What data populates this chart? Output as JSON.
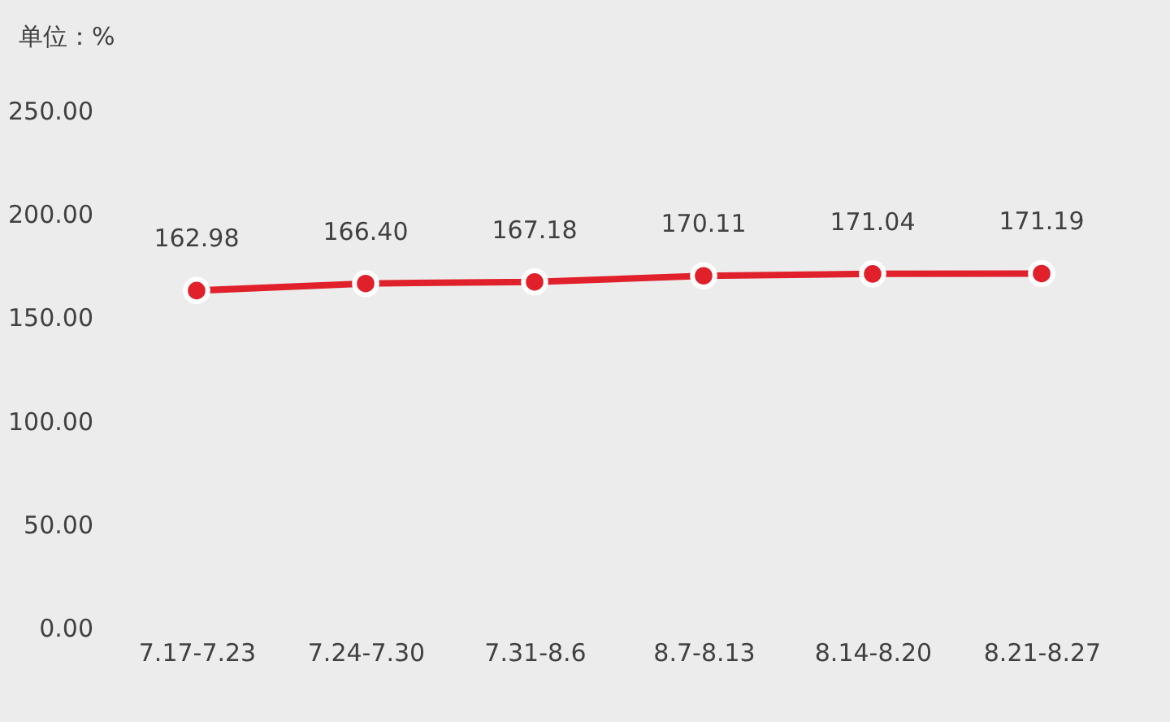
{
  "chart_data": {
    "type": "line",
    "ylabel": "单位：%",
    "categories": [
      "7.17-7.23",
      "7.24-7.30",
      "7.31-8.6",
      "8.7-8.13",
      "8.14-8.20",
      "8.21-8.27"
    ],
    "series": [
      {
        "color": "#e0202a",
        "values": [
          162.98,
          166.4,
          167.18,
          170.11,
          171.04,
          171.19
        ],
        "value_labels": [
          "162.98",
          "166.40",
          "167.18",
          "170.11",
          "171.04",
          "171.19"
        ]
      }
    ],
    "ylim": [
      0,
      250
    ],
    "yticks": [
      {
        "value": 0,
        "label": "0.00"
      },
      {
        "value": 50,
        "label": "50.00"
      },
      {
        "value": 100,
        "label": "100.00"
      },
      {
        "value": 150,
        "label": "150.00"
      },
      {
        "value": 200,
        "label": "200.00"
      },
      {
        "value": 250,
        "label": "250.00"
      }
    ],
    "grid": false,
    "marker": "circle",
    "line_style": "solid"
  }
}
